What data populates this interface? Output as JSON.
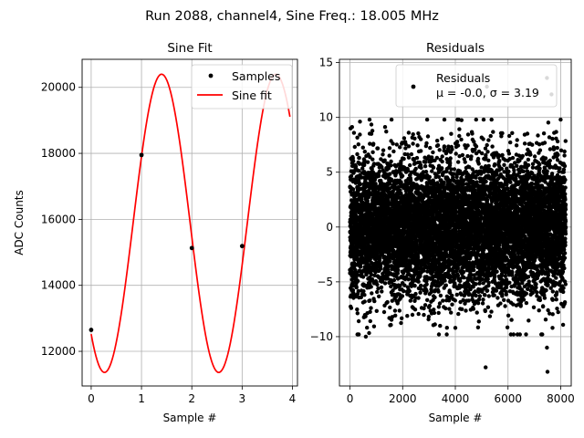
{
  "figure_title": "Run 2088, channel4, Sine Freq.: 18.005 MHz",
  "chart_data": [
    {
      "type": "line",
      "title": "Sine Fit",
      "xlabel": "Sample #",
      "ylabel": "ADC Counts",
      "xlim": [
        -0.18,
        4.1
      ],
      "ylim": [
        10950,
        20850
      ],
      "xticks": [
        0,
        1,
        2,
        3,
        4
      ],
      "yticks": [
        12000,
        14000,
        16000,
        18000,
        20000
      ],
      "grid": true,
      "legend_position": "top-right",
      "series": [
        {
          "name": "Samples",
          "style": "scatter",
          "color": "#000000",
          "x": [
            0,
            1,
            2,
            3
          ],
          "y": [
            12650,
            17950,
            15130,
            15190
          ]
        },
        {
          "name": "Sine fit",
          "style": "line",
          "color": "#ff0000",
          "amplitude": 4520,
          "offset": 15880,
          "period": 2.27,
          "peak_x": 1.4,
          "x_range": [
            0,
            3.95
          ],
          "points": 160
        }
      ]
    },
    {
      "type": "scatter",
      "title": "Residuals",
      "xlabel": "Sample #",
      "ylabel": "",
      "xlim": [
        -400,
        8400
      ],
      "ylim": [
        -14.5,
        15.3
      ],
      "xticks": [
        0,
        2000,
        4000,
        6000,
        8000
      ],
      "yticks": [
        -10,
        -5,
        0,
        5,
        10,
        15
      ],
      "ytick_labels": [
        "−10",
        "−5",
        "0",
        "5",
        "10",
        "15"
      ],
      "grid": true,
      "legend_position": "top-right",
      "series": [
        {
          "name": "Residuals",
          "color": "#000000",
          "n_points": 8192,
          "mean": -0.0,
          "sigma": 3.19,
          "outliers": [
            [
              600,
              -10
            ],
            [
              4000,
              -9.2
            ],
            [
              5150,
              -12.8
            ],
            [
              5200,
              12.8
            ],
            [
              7500,
              -13.2
            ],
            [
              7480,
              13.6
            ],
            [
              7650,
              12.1
            ],
            [
              7480,
              -11
            ]
          ]
        }
      ],
      "legend_stats": {
        "line1": "μ = -0.0, σ = 3.19"
      }
    }
  ]
}
